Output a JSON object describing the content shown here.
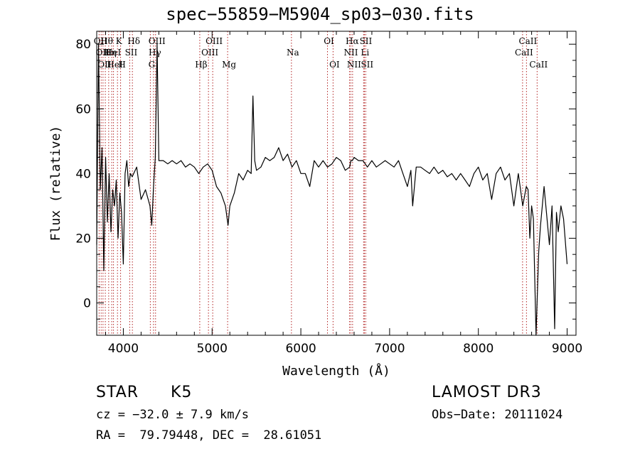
{
  "chart_data": {
    "type": "line",
    "title": "spec−55859−M5904_sp03−030.fits",
    "xlabel": "Wavelength (Å)",
    "ylabel": "Flux (relative)",
    "xlim": [
      3700,
      9100
    ],
    "ylim": [
      -10,
      84
    ],
    "x_ticks": [
      4000,
      5000,
      6000,
      7000,
      8000,
      9000
    ],
    "y_ticks": [
      0,
      20,
      40,
      60,
      80
    ],
    "series": [
      {
        "name": "flux",
        "x": [
          3700,
          3720,
          3740,
          3760,
          3780,
          3800,
          3820,
          3840,
          3860,
          3880,
          3900,
          3920,
          3940,
          3960,
          3980,
          4000,
          4020,
          4040,
          4060,
          4080,
          4100,
          4150,
          4200,
          4250,
          4300,
          4320,
          4340,
          4360,
          4380,
          4400,
          4450,
          4500,
          4550,
          4600,
          4650,
          4700,
          4750,
          4800,
          4850,
          4900,
          4950,
          5000,
          5050,
          5100,
          5150,
          5180,
          5200,
          5250,
          5300,
          5350,
          5400,
          5440,
          5460,
          5480,
          5500,
          5550,
          5600,
          5650,
          5700,
          5750,
          5800,
          5850,
          5900,
          5950,
          6000,
          6050,
          6100,
          6150,
          6200,
          6250,
          6300,
          6350,
          6400,
          6450,
          6500,
          6550,
          6563,
          6580,
          6600,
          6650,
          6700,
          6750,
          6800,
          6850,
          6900,
          6950,
          7000,
          7050,
          7100,
          7150,
          7200,
          7240,
          7260,
          7300,
          7350,
          7400,
          7450,
          7500,
          7550,
          7600,
          7650,
          7700,
          7750,
          7800,
          7850,
          7900,
          7950,
          8000,
          8050,
          8100,
          8150,
          8200,
          8250,
          8300,
          8350,
          8400,
          8450,
          8500,
          8540,
          8560,
          8580,
          8600,
          8620,
          8650,
          8680,
          8700,
          8720,
          8740,
          8760,
          8780,
          8800,
          8830,
          8860,
          8880,
          8900,
          8930,
          8960,
          9000
        ],
        "y": [
          18,
          80,
          35,
          48,
          10,
          45,
          25,
          40,
          22,
          35,
          30,
          38,
          20,
          34,
          28,
          12,
          40,
          44,
          36,
          40,
          39,
          42,
          32,
          35,
          30,
          24,
          36,
          45,
          80,
          44,
          44,
          43,
          44,
          43,
          44,
          42,
          43,
          42,
          40,
          42,
          43,
          41,
          36,
          34,
          30,
          24,
          30,
          34,
          40,
          38,
          41,
          40,
          64,
          44,
          41,
          42,
          45,
          44,
          45,
          48,
          44,
          46,
          42,
          44,
          40,
          40,
          36,
          44,
          42,
          44,
          42,
          43,
          45,
          44,
          41,
          42,
          44,
          44,
          45,
          44,
          44,
          42,
          44,
          42,
          43,
          44,
          43,
          42,
          44,
          40,
          36,
          41,
          30,
          42,
          42,
          41,
          40,
          42,
          40,
          41,
          39,
          40,
          38,
          40,
          38,
          36,
          40,
          42,
          38,
          40,
          32,
          40,
          42,
          38,
          40,
          30,
          40,
          30,
          36,
          35,
          20,
          30,
          26,
          -10,
          16,
          24,
          30,
          36,
          30,
          24,
          18,
          30,
          -8,
          28,
          22,
          30,
          26,
          12
        ]
      }
    ],
    "lines": [
      {
        "x": 3727,
        "label": "OII",
        "row": 1
      },
      {
        "x": 3750,
        "label": "OII",
        "row": 2
      },
      {
        "x": 3771,
        "label": "OII",
        "row": 3
      },
      {
        "x": 3797,
        "label": "Hθ",
        "row": 1
      },
      {
        "x": 3835,
        "label": "Hη",
        "row": 2
      },
      {
        "x": 3869,
        "label": "HeI",
        "row": 2
      },
      {
        "x": 3889,
        "label": "HeI",
        "row": 3
      },
      {
        "x": 3934,
        "label": "K",
        "row": 1
      },
      {
        "x": 3969,
        "label": "H",
        "row": 3
      },
      {
        "x": 4072,
        "label": "SII",
        "row": 2
      },
      {
        "x": 4102,
        "label": "Hδ",
        "row": 1
      },
      {
        "x": 4304,
        "label": "G",
        "row": 3
      },
      {
        "x": 4340,
        "label": "Hγ",
        "row": 2
      },
      {
        "x": 4363,
        "label": "OIII",
        "row": 1
      },
      {
        "x": 4861,
        "label": "Hβ",
        "row": 3
      },
      {
        "x": 4959,
        "label": "OIII",
        "row": 2
      },
      {
        "x": 5007,
        "label": "OIII",
        "row": 1
      },
      {
        "x": 5175,
        "label": "Mg",
        "row": 3
      },
      {
        "x": 5894,
        "label": "Na",
        "row": 2
      },
      {
        "x": 6300,
        "label": "OI",
        "row": 1
      },
      {
        "x": 6363,
        "label": "OI",
        "row": 3
      },
      {
        "x": 6548,
        "label": "NII",
        "row": 2
      },
      {
        "x": 6563,
        "label": "Hα",
        "row": 1
      },
      {
        "x": 6583,
        "label": "NII",
        "row": 3
      },
      {
        "x": 6707,
        "label": "Li",
        "row": 2
      },
      {
        "x": 6716,
        "label": "SII",
        "row": 1
      },
      {
        "x": 6731,
        "label": "SII",
        "row": 3
      },
      {
        "x": 8498,
        "label": "CaII",
        "row": 2
      },
      {
        "x": 8542,
        "label": "CaII",
        "row": 1
      },
      {
        "x": 8662,
        "label": "CaII",
        "row": 3
      }
    ]
  },
  "info": {
    "class": "STAR",
    "subclass": "K5",
    "survey": "LAMOST DR3",
    "cz": "cz = −32.0 ± 7.9 km/s",
    "obs_date": "Obs−Date: 20111024",
    "coords": "RA =  79.79448, DEC =  28.61051"
  }
}
